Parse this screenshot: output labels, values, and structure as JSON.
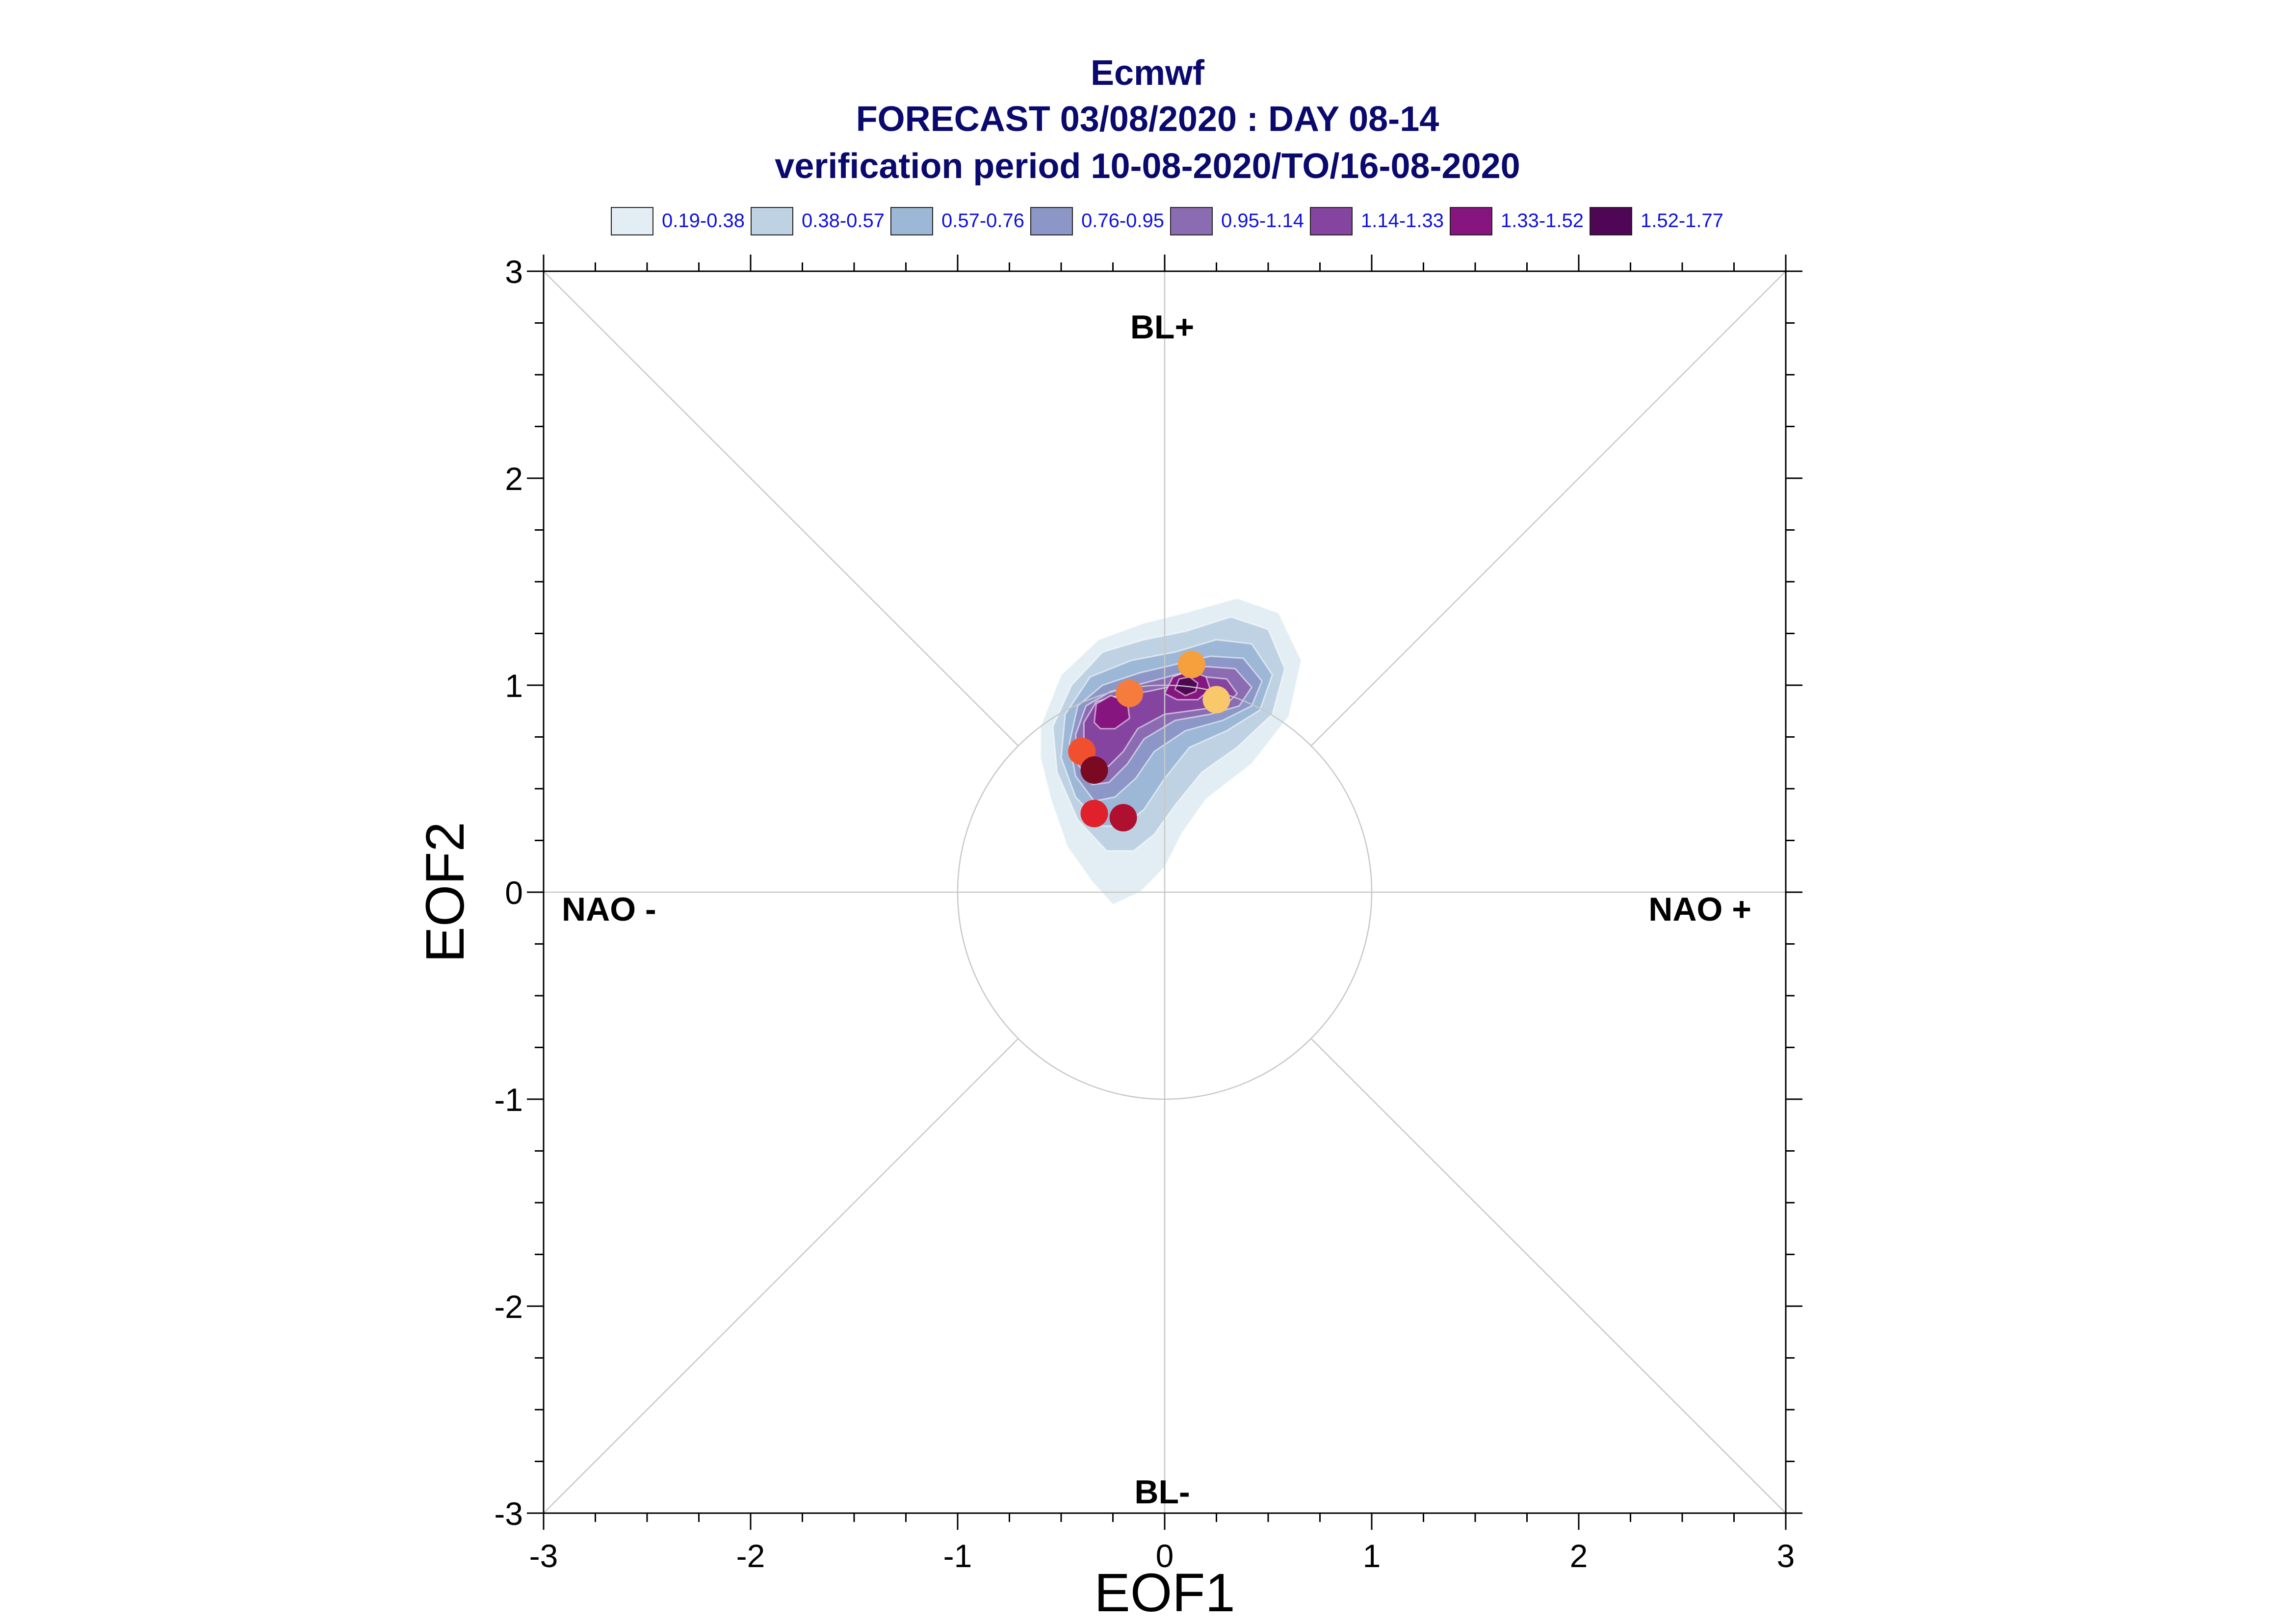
{
  "title": {
    "line1": "Ecmwf",
    "line2": "FORECAST 03/08/2020 : DAY 08-14",
    "line3": "verification period 10-08-2020/TO/16-08-2020"
  },
  "legend": [
    {
      "label": "0.19-0.38",
      "color": "#e3edf4"
    },
    {
      "label": "0.38-0.57",
      "color": "#bfd2e3"
    },
    {
      "label": "0.57-0.76",
      "color": "#9cb8d6"
    },
    {
      "label": "0.76-0.95",
      "color": "#8c97c7"
    },
    {
      "label": "0.95-1.14",
      "color": "#8b6cb2"
    },
    {
      "label": "1.14-1.33",
      "color": "#8544a0"
    },
    {
      "label": "1.33-1.52",
      "color": "#861580"
    },
    {
      "label": "1.52-1.77",
      "color": "#4f0655"
    }
  ],
  "chart_data": {
    "type": "scatter",
    "xlabel": "EOF1",
    "ylabel": "EOF2",
    "xlim": [
      -3,
      3
    ],
    "ylim": [
      -3,
      3
    ],
    "xticks": [
      "-3",
      "-2",
      "-1",
      "0",
      "1",
      "2",
      "3"
    ],
    "yticks": [
      "-3",
      "-2",
      "-1",
      "0",
      "1",
      "2",
      "3"
    ],
    "regime_labels": {
      "top": "BL+",
      "bottom": "BL-",
      "left": "NAO -",
      "right": "NAO +"
    },
    "circle_radius": 1,
    "density_contours": [
      {
        "level": "0.19-0.38",
        "polygon": [
          [
            -0.25,
            -0.06
          ],
          [
            -0.35,
            0.05
          ],
          [
            -0.47,
            0.22
          ],
          [
            -0.55,
            0.45
          ],
          [
            -0.6,
            0.65
          ],
          [
            -0.6,
            0.8
          ],
          [
            -0.5,
            1.05
          ],
          [
            -0.32,
            1.22
          ],
          [
            -0.1,
            1.3
          ],
          [
            0.1,
            1.35
          ],
          [
            0.35,
            1.42
          ],
          [
            0.55,
            1.35
          ],
          [
            0.66,
            1.12
          ],
          [
            0.6,
            0.85
          ],
          [
            0.42,
            0.62
          ],
          [
            0.2,
            0.45
          ],
          [
            0.08,
            0.28
          ],
          [
            0.0,
            0.12
          ],
          [
            -0.12,
            0.0
          ]
        ]
      },
      {
        "level": "0.38-0.57",
        "polygon": [
          [
            -0.28,
            0.2
          ],
          [
            -0.42,
            0.35
          ],
          [
            -0.52,
            0.58
          ],
          [
            -0.54,
            0.8
          ],
          [
            -0.45,
            1.0
          ],
          [
            -0.3,
            1.16
          ],
          [
            -0.1,
            1.22
          ],
          [
            0.1,
            1.26
          ],
          [
            0.32,
            1.33
          ],
          [
            0.5,
            1.27
          ],
          [
            0.58,
            1.08
          ],
          [
            0.52,
            0.86
          ],
          [
            0.35,
            0.7
          ],
          [
            0.18,
            0.58
          ],
          [
            0.05,
            0.42
          ],
          [
            -0.05,
            0.28
          ],
          [
            -0.15,
            0.2
          ]
        ]
      },
      {
        "level": "0.57-0.76",
        "polygon": [
          [
            -0.3,
            0.32
          ],
          [
            -0.43,
            0.46
          ],
          [
            -0.5,
            0.65
          ],
          [
            -0.48,
            0.86
          ],
          [
            -0.36,
            1.04
          ],
          [
            -0.16,
            1.12
          ],
          [
            0.05,
            1.16
          ],
          [
            0.25,
            1.22
          ],
          [
            0.42,
            1.2
          ],
          [
            0.52,
            1.05
          ],
          [
            0.46,
            0.88
          ],
          [
            0.3,
            0.78
          ],
          [
            0.12,
            0.7
          ],
          [
            0.0,
            0.55
          ],
          [
            -0.1,
            0.4
          ],
          [
            -0.2,
            0.32
          ]
        ]
      },
      {
        "level": "0.76-0.95",
        "polygon": [
          [
            -0.34,
            0.44
          ],
          [
            -0.43,
            0.56
          ],
          [
            -0.46,
            0.72
          ],
          [
            -0.42,
            0.9
          ],
          [
            -0.3,
            1.0
          ],
          [
            -0.12,
            1.06
          ],
          [
            0.05,
            1.1
          ],
          [
            0.22,
            1.14
          ],
          [
            0.38,
            1.13
          ],
          [
            0.47,
            1.02
          ],
          [
            0.42,
            0.9
          ],
          [
            0.28,
            0.83
          ],
          [
            0.1,
            0.78
          ],
          [
            -0.05,
            0.68
          ],
          [
            -0.14,
            0.55
          ],
          [
            -0.24,
            0.46
          ]
        ]
      },
      {
        "level": "0.95-1.14",
        "polygon": [
          [
            -0.35,
            0.52
          ],
          [
            -0.42,
            0.62
          ],
          [
            -0.43,
            0.76
          ],
          [
            -0.38,
            0.9
          ],
          [
            -0.26,
            0.97
          ],
          [
            -0.1,
            1.01
          ],
          [
            0.05,
            1.05
          ],
          [
            0.2,
            1.09
          ],
          [
            0.34,
            1.08
          ],
          [
            0.42,
            0.99
          ],
          [
            0.36,
            0.9
          ],
          [
            0.22,
            0.86
          ],
          [
            0.05,
            0.83
          ],
          [
            -0.1,
            0.74
          ],
          [
            -0.18,
            0.62
          ],
          [
            -0.27,
            0.53
          ]
        ]
      },
      {
        "level": "1.14-1.33",
        "polygon": [
          [
            -0.33,
            0.6
          ],
          [
            -0.39,
            0.7
          ],
          [
            -0.39,
            0.82
          ],
          [
            -0.33,
            0.92
          ],
          [
            -0.22,
            0.95
          ],
          [
            -0.08,
            0.97
          ],
          [
            0.06,
            1.0
          ],
          [
            0.2,
            1.04
          ],
          [
            0.3,
            1.03
          ],
          [
            0.35,
            0.96
          ],
          [
            0.29,
            0.9
          ],
          [
            0.15,
            0.88
          ],
          [
            0.0,
            0.86
          ],
          [
            -0.13,
            0.79
          ],
          [
            -0.2,
            0.68
          ],
          [
            -0.27,
            0.61
          ]
        ]
      },
      {
        "level": "1.33-1.52",
        "polygon": [
          [
            0.0,
            0.96
          ],
          [
            0.04,
            1.04
          ],
          [
            0.12,
            1.07
          ],
          [
            0.2,
            1.04
          ],
          [
            0.22,
            0.98
          ],
          [
            0.16,
            0.93
          ],
          [
            0.06,
            0.93
          ]
        ]
      },
      {
        "level": "1.33-1.52",
        "polygon": [
          [
            -0.34,
            0.82
          ],
          [
            -0.33,
            0.91
          ],
          [
            -0.26,
            0.95
          ],
          [
            -0.18,
            0.92
          ],
          [
            -0.17,
            0.84
          ],
          [
            -0.24,
            0.79
          ],
          [
            -0.31,
            0.79
          ]
        ]
      },
      {
        "level": "1.52-1.77",
        "polygon": [
          [
            0.05,
            0.98
          ],
          [
            0.07,
            1.03
          ],
          [
            0.12,
            1.04
          ],
          [
            0.16,
            1.01
          ],
          [
            0.15,
            0.97
          ],
          [
            0.1,
            0.95
          ]
        ]
      }
    ],
    "points": [
      {
        "x": 0.13,
        "y": 1.1,
        "color": "#f5a03c"
      },
      {
        "x": -0.17,
        "y": 0.96,
        "color": "#f57c3c"
      },
      {
        "x": 0.25,
        "y": 0.93,
        "color": "#f8c86a"
      },
      {
        "x": -0.4,
        "y": 0.68,
        "color": "#f0502e"
      },
      {
        "x": -0.34,
        "y": 0.59,
        "color": "#7a0a22"
      },
      {
        "x": -0.34,
        "y": 0.38,
        "color": "#e0202a"
      },
      {
        "x": -0.2,
        "y": 0.36,
        "color": "#b01030"
      }
    ],
    "grid": false
  }
}
